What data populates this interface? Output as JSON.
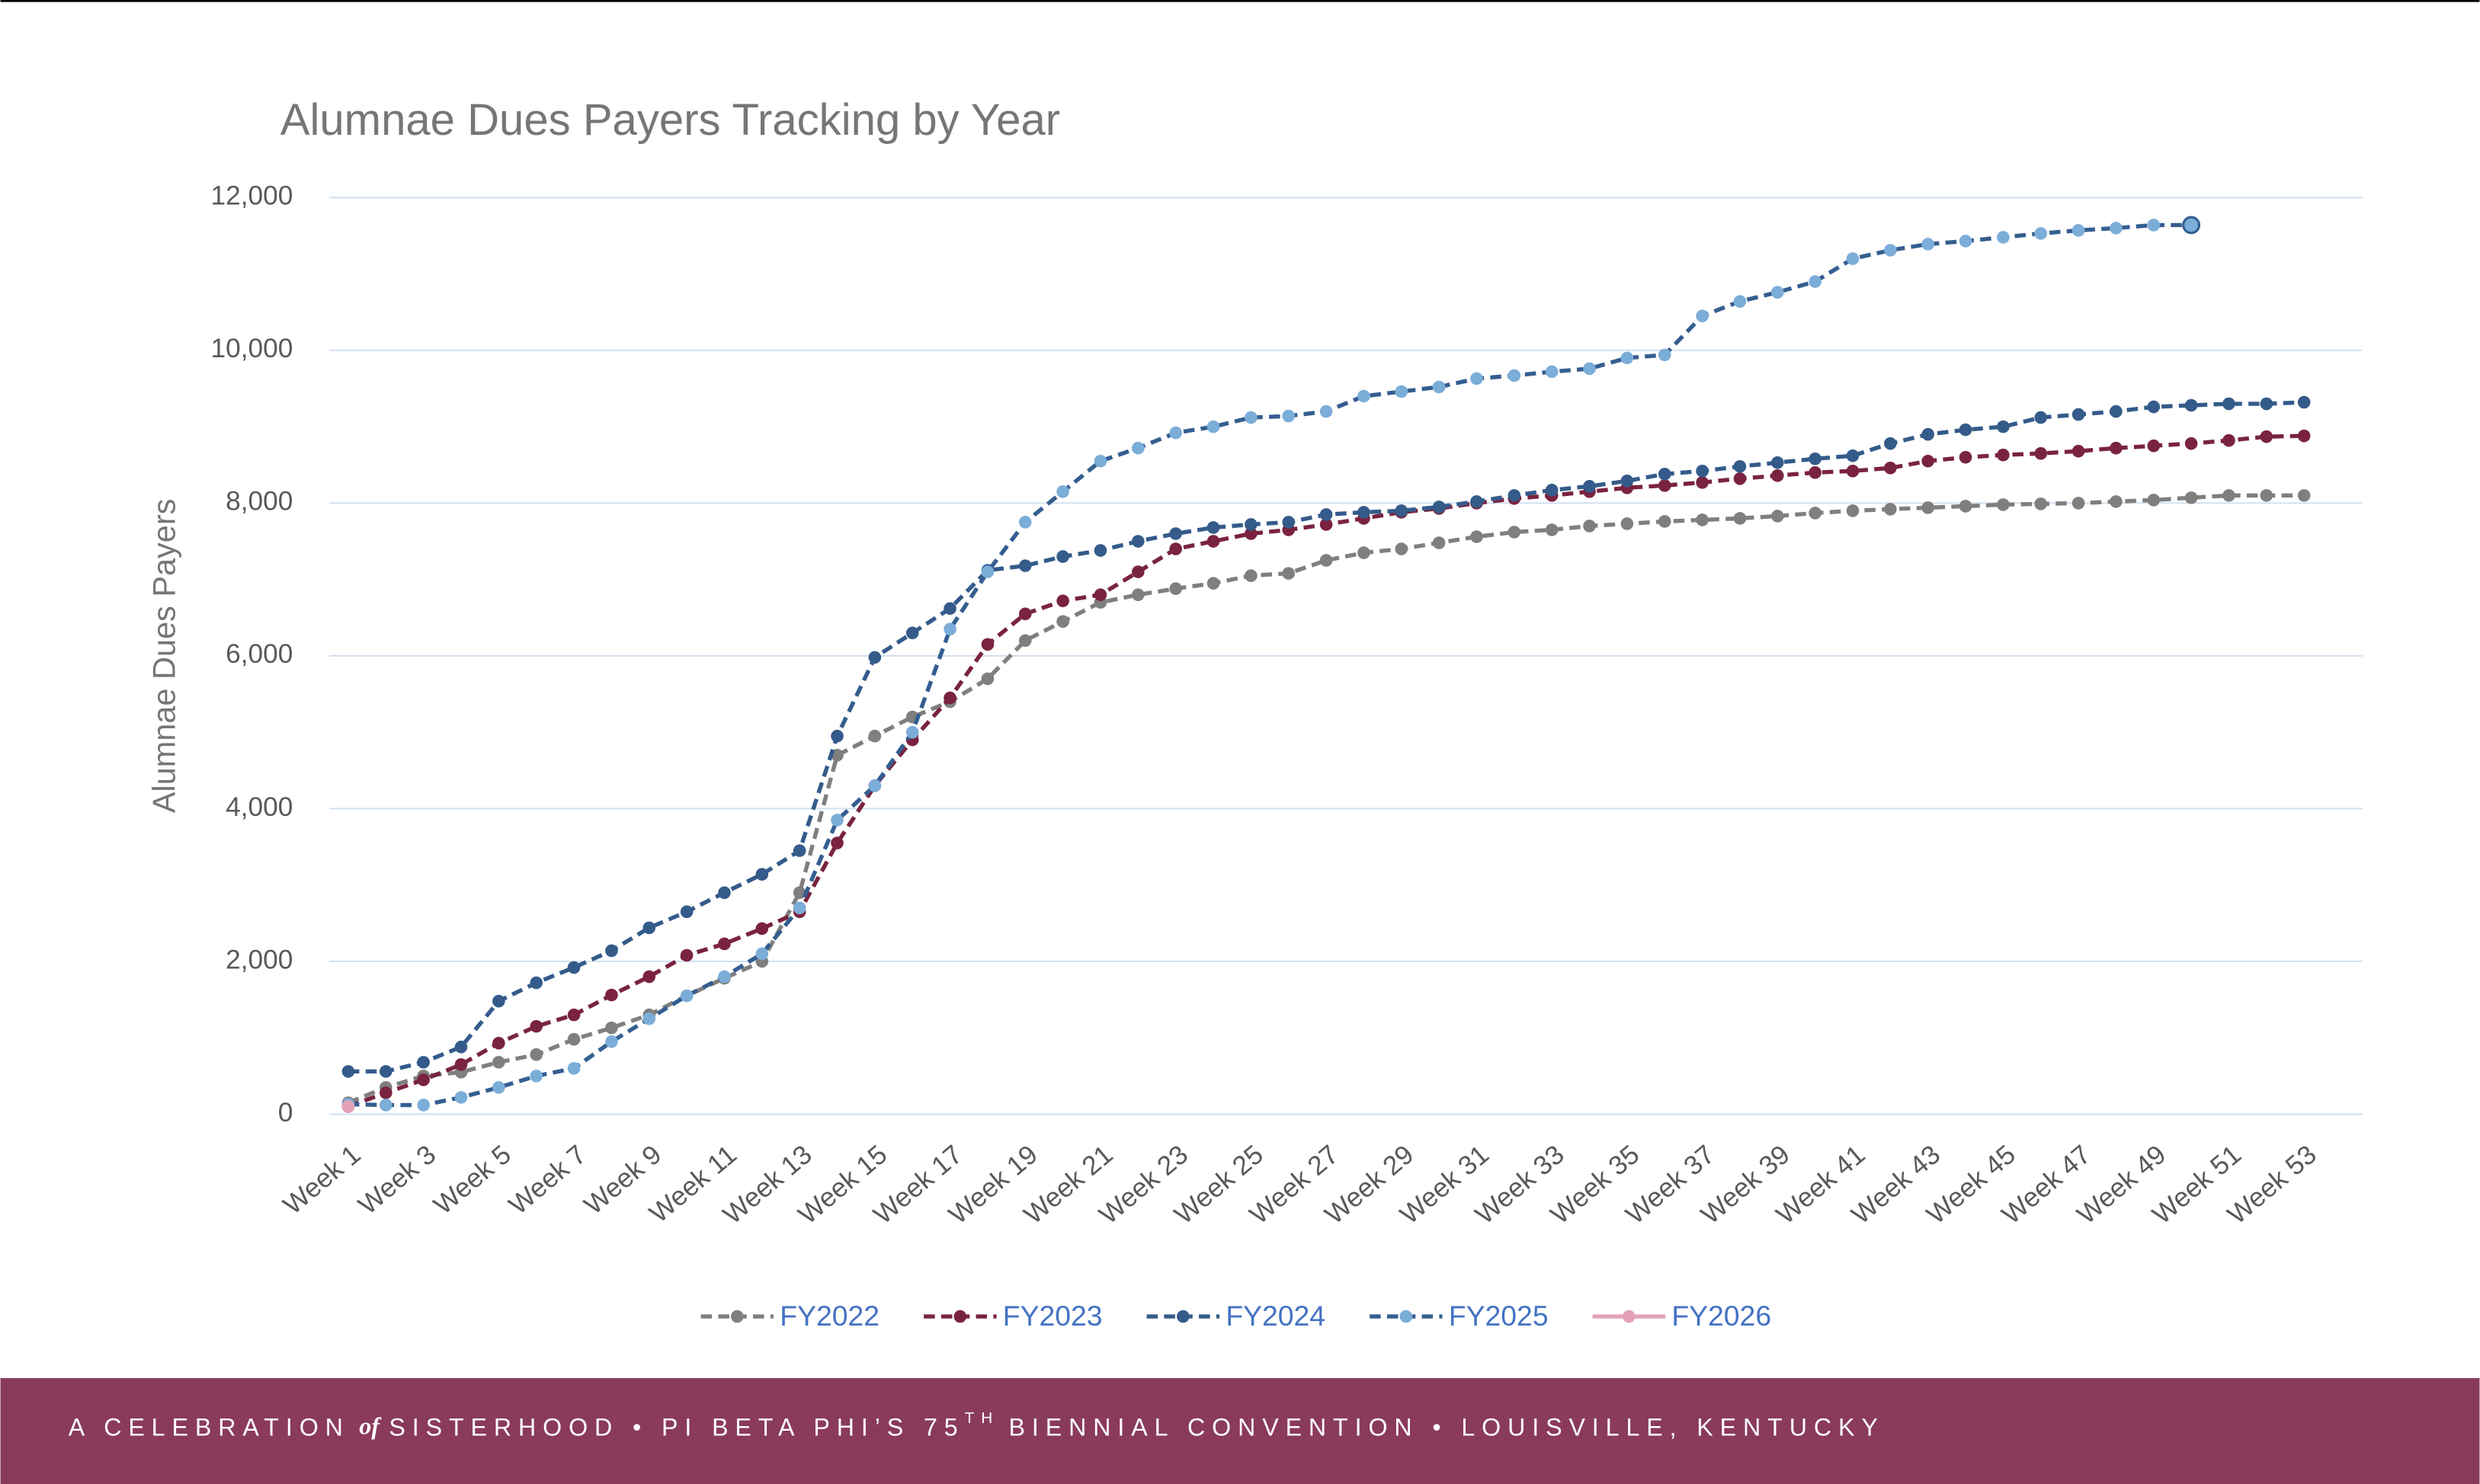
{
  "chart_data": {
    "type": "line",
    "title": "Alumnae Dues Payers Tracking by Year",
    "y_label": "Alumnae Dues Payers",
    "categories": [
      "Week 1",
      null,
      "Week 3",
      null,
      "Week 5",
      null,
      "Week 7",
      null,
      "Week 9",
      null,
      "Week 11",
      null,
      "Week 13",
      null,
      "Week 15",
      null,
      "Week 17",
      null,
      "Week 19",
      null,
      "Week 21",
      null,
      "Week 23",
      null,
      "Week 25",
      null,
      "Week 27",
      null,
      "Week 29",
      null,
      "Week 31",
      null,
      "Week 33",
      null,
      "Week 35",
      null,
      "Week 37",
      null,
      "Week 39",
      null,
      "Week 41",
      null,
      "Week 43",
      null,
      "Week 45",
      null,
      "Week 47",
      null,
      "Week 49",
      null,
      "Week 51",
      null,
      "Week 53"
    ],
    "ylim": [
      0,
      12000
    ],
    "yticks": [
      0,
      {
        "value": 2000,
        "label": "2,000"
      },
      {
        "value": 4000,
        "label": "4,000"
      },
      {
        "value": 6000,
        "label": "6,000"
      },
      {
        "value": 8000,
        "label": "8,000"
      },
      {
        "value": 10000,
        "label": "10,000"
      },
      {
        "value": 12000,
        "label": "12,000"
      }
    ],
    "grid": true,
    "legend": "bottom",
    "series": [
      {
        "name": "FY2022",
        "color": "#7f7f7f",
        "marker_color": "#7f7f7f",
        "line_style": "dashed",
        "values": [
          150,
          350,
          500,
          550,
          680,
          780,
          980,
          1130,
          1300,
          1550,
          1780,
          2000,
          2900,
          4700,
          4950,
          5200,
          5400,
          5700,
          6200,
          6450,
          6700,
          6800,
          6880,
          6950,
          7050,
          7080,
          7250,
          7350,
          7400,
          7480,
          7560,
          7620,
          7650,
          7700,
          7730,
          7760,
          7780,
          7800,
          7830,
          7870,
          7900,
          7920,
          7940,
          7960,
          7980,
          7990,
          8000,
          8020,
          8040,
          8070,
          8100,
          8100,
          8100
        ]
      },
      {
        "name": "FY2023",
        "color": "#7a2341",
        "marker_color": "#7a2341",
        "line_style": "dashed",
        "values": [
          100,
          280,
          450,
          650,
          930,
          1150,
          1300,
          1560,
          1800,
          2080,
          2230,
          2430,
          2650,
          3550,
          4300,
          4900,
          5450,
          6150,
          6550,
          6720,
          6800,
          7100,
          7400,
          7500,
          7600,
          7650,
          7720,
          7800,
          7880,
          7930,
          8000,
          8060,
          8100,
          8150,
          8200,
          8230,
          8270,
          8320,
          8360,
          8400,
          8420,
          8460,
          8550,
          8600,
          8630,
          8650,
          8680,
          8720,
          8750,
          8780,
          8820,
          8870,
          8880
        ]
      },
      {
        "name": "FY2024",
        "color": "#345b8a",
        "marker_color": "#345b8a",
        "line_style": "dashed",
        "values": [
          560,
          560,
          680,
          880,
          1480,
          1720,
          1920,
          2140,
          2440,
          2650,
          2900,
          3140,
          3450,
          4950,
          5980,
          6300,
          6620,
          7120,
          7180,
          7300,
          7380,
          7500,
          7600,
          7680,
          7720,
          7750,
          7850,
          7880,
          7900,
          7950,
          8020,
          8100,
          8170,
          8220,
          8290,
          8380,
          8420,
          8480,
          8530,
          8580,
          8620,
          8780,
          8900,
          8960,
          9000,
          9120,
          9160,
          9200,
          9260,
          9280,
          9300,
          9300,
          9320
        ]
      },
      {
        "name": "FY2025",
        "color": "#345e90",
        "marker_color": "#7badd9",
        "line_style": "dashed",
        "values": [
          130,
          120,
          120,
          220,
          350,
          500,
          600,
          950,
          1250,
          1550,
          1800,
          2100,
          2700,
          3850,
          4300,
          5000,
          6350,
          7100,
          7750,
          8150,
          8550,
          8720,
          8920,
          9000,
          9120,
          9140,
          9200,
          9400,
          9460,
          9520,
          9630,
          9670,
          9720,
          9760,
          9900,
          9940,
          10450,
          10640,
          10760,
          10900,
          11200,
          11310,
          11390,
          11430,
          11480,
          11530,
          11570,
          11600,
          11640,
          11640,
          null,
          null,
          null
        ]
      },
      {
        "name": "FY2026",
        "color": "#e3a2b5",
        "marker_color": "#e3a2b5",
        "line_style": "solid",
        "values": [
          100,
          null,
          null,
          null,
          null,
          null,
          null,
          null,
          null,
          null,
          null,
          null,
          null,
          null,
          null,
          null,
          null,
          null,
          null,
          null,
          null,
          null,
          null,
          null,
          null,
          null,
          null,
          null,
          null,
          null,
          null,
          null,
          null,
          null,
          null,
          null,
          null,
          null,
          null,
          null,
          null,
          null,
          null,
          null,
          null,
          null,
          null,
          null,
          null,
          null,
          null,
          null,
          null
        ]
      }
    ]
  },
  "footer": {
    "pre": "A CELEBRATION",
    "of": "of",
    "mid": "SISTERHOOD • PI BETA PHI’S 75",
    "sup": "TH",
    "post": "BIENNIAL CONVENTION • LOUISVILLE, KENTUCKY"
  }
}
